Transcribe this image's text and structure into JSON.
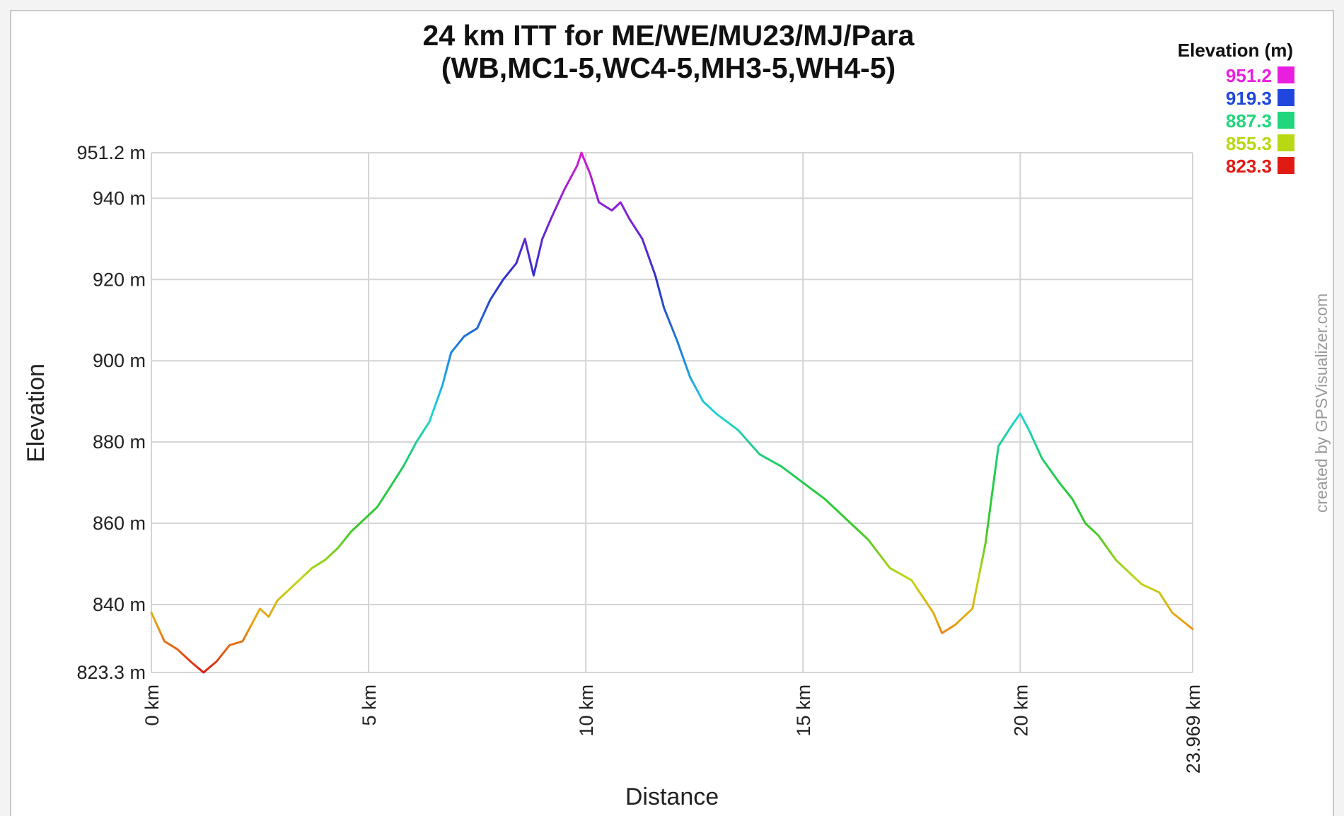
{
  "chart_data": {
    "type": "line",
    "title_line1": "24 km ITT for ME/WE/MU23/MJ/Para",
    "title_line2": "(WB,MC1-5,WC4-5,MH3-5,WH4-5)",
    "xlabel": "Distance",
    "ylabel": "Elevation",
    "xlim": [
      0,
      23.969
    ],
    "ylim": [
      823.3,
      951.2
    ],
    "grid": true,
    "x_ticks": [
      0,
      5,
      10,
      15,
      20,
      23.969
    ],
    "x_tick_labels": [
      "0 km",
      "5 km",
      "10 km",
      "15 km",
      "20 km",
      "23.969 km"
    ],
    "y_ticks": [
      823.3,
      840,
      860,
      880,
      900,
      920,
      940,
      951.2
    ],
    "y_tick_labels": [
      "823.3 m",
      "840 m",
      "860 m",
      "880 m",
      "900 m",
      "920 m",
      "940 m",
      "951.2 m"
    ],
    "legend": {
      "title": "Elevation (m)",
      "position": "top-right",
      "items": [
        {
          "label": "951.2",
          "color": "#e91fe0"
        },
        {
          "label": "919.3",
          "color": "#1f47dd"
        },
        {
          "label": "887.3",
          "color": "#21d67c"
        },
        {
          "label": "855.3",
          "color": "#b7d813"
        },
        {
          "label": "823.3",
          "color": "#e01b13"
        }
      ]
    },
    "credit": "created by GPSVisualizer.com",
    "series": [
      {
        "x": [
          0,
          0.3,
          0.6,
          0.9,
          1.2,
          1.5,
          1.8,
          2.1,
          2.4,
          2.5,
          2.7,
          2.9,
          3.3,
          3.7,
          4.0,
          4.3,
          4.6,
          4.9,
          5.2,
          5.5,
          5.8,
          6.1,
          6.4,
          6.7,
          6.9,
          7.2,
          7.5,
          7.8,
          8.1,
          8.4,
          8.6,
          8.8,
          9.0,
          9.2,
          9.5,
          9.8,
          9.9,
          10.1,
          10.3,
          10.6,
          10.8,
          11.0,
          11.3,
          11.6,
          11.8,
          12.1,
          12.4,
          12.7,
          13.0,
          13.5,
          14.0,
          14.5,
          15.0,
          15.5,
          16.0,
          16.5,
          17.0,
          17.5,
          18.0,
          18.2,
          18.5,
          18.9,
          19.2,
          19.5,
          19.8,
          20.0,
          20.2,
          20.5,
          20.9,
          21.2,
          21.5,
          21.8,
          22.2,
          22.5,
          22.8,
          23.2,
          23.5,
          23.969
        ],
        "y": [
          838,
          831,
          829,
          826,
          823.3,
          826,
          830,
          831,
          837,
          839,
          837,
          841,
          845,
          849,
          851,
          854,
          858,
          861,
          864,
          869,
          874,
          880,
          885,
          894,
          902,
          906,
          908,
          915,
          920,
          924,
          930,
          921,
          930,
          935,
          942,
          948,
          951.2,
          946,
          939,
          937,
          939,
          935,
          930,
          921,
          913,
          905,
          896,
          890,
          887,
          883,
          877,
          874,
          870,
          866,
          861,
          856,
          849,
          846,
          838,
          833,
          835,
          839,
          855,
          879,
          884,
          887,
          883,
          876,
          870,
          866,
          860,
          857,
          851,
          848,
          845,
          843,
          838,
          834
        ]
      }
    ]
  }
}
